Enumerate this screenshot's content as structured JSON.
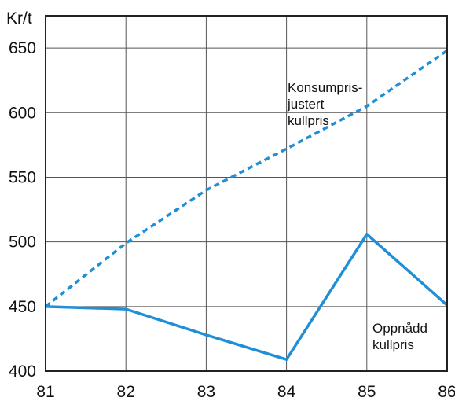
{
  "chart_data": {
    "type": "line",
    "title": "",
    "xlabel": "",
    "ylabel": "Kr/t",
    "x": [
      "81",
      "82",
      "83",
      "84",
      "85",
      "86"
    ],
    "xlim": [
      81,
      86
    ],
    "ylim": [
      400,
      675
    ],
    "yticks": [
      400,
      450,
      500,
      550,
      600,
      650
    ],
    "grid": true,
    "legend": "none",
    "series": [
      {
        "name": "Konsumpris-justert kullpris",
        "label_lines": [
          "Konsumpris-",
          "justert",
          "kullpris"
        ],
        "style": "dashed",
        "color": "#1f8fd8",
        "values": [
          450,
          499,
          540,
          572,
          605,
          648
        ]
      },
      {
        "name": "Oppnådd kullpris",
        "label_lines": [
          "Oppnådd",
          "kullpris"
        ],
        "style": "solid",
        "color": "#1f8fd8",
        "values": [
          450,
          448,
          428,
          409,
          506,
          451
        ]
      }
    ]
  }
}
